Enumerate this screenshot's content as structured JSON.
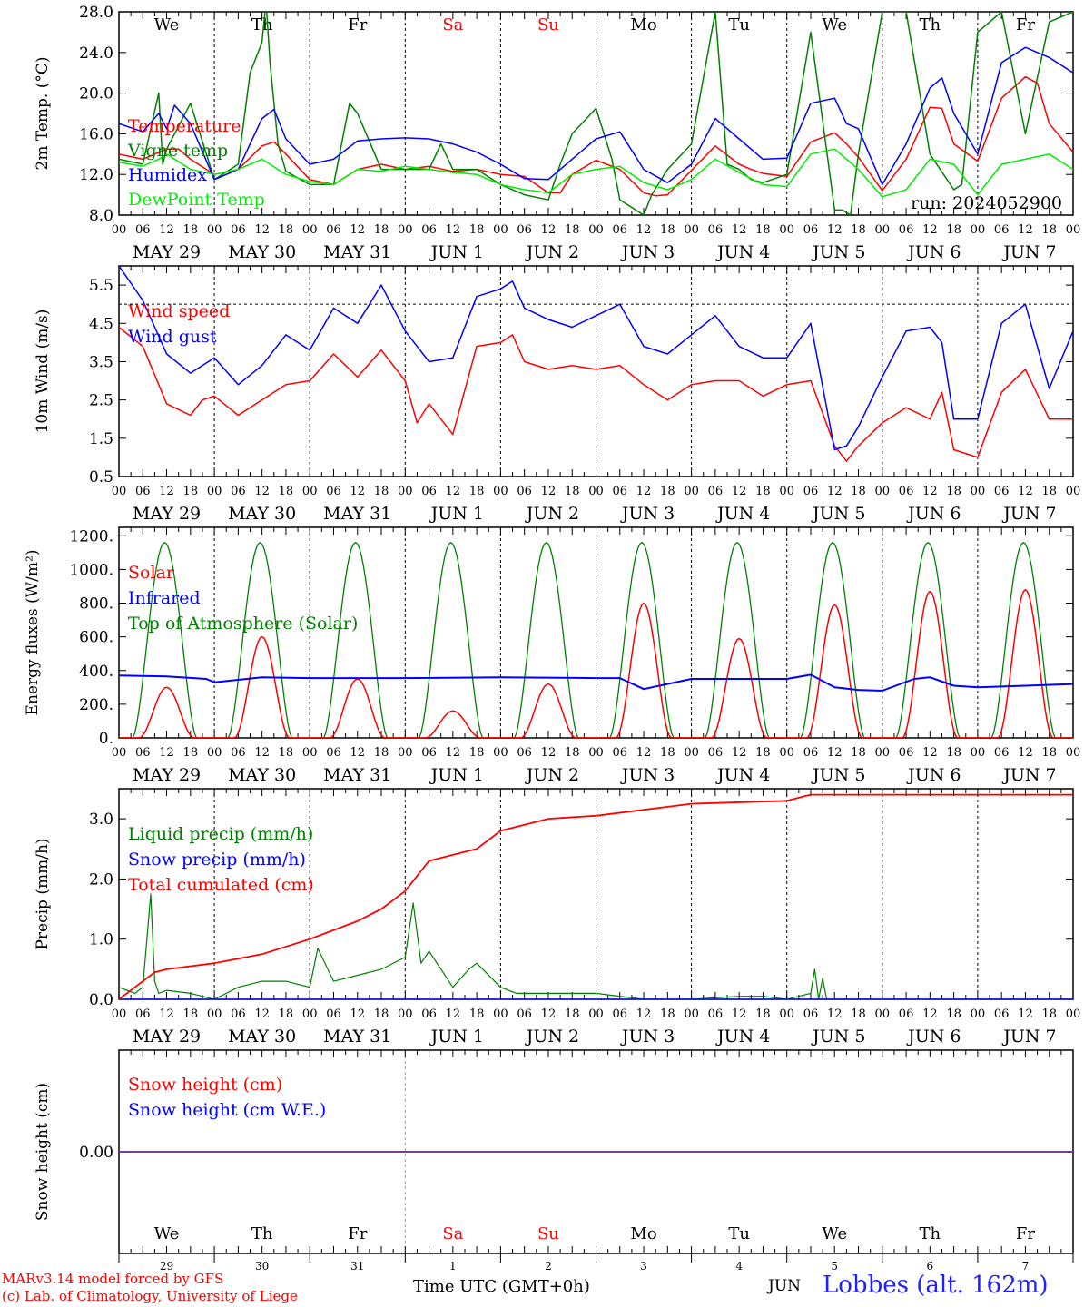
{
  "run_label": "run: 2024052900",
  "x_axis": {
    "hour_ticks": [
      "00",
      "06",
      "12",
      "18"
    ],
    "date_labels": [
      "MAY 29",
      "MAY 30",
      "MAY 31",
      "JUN  1",
      "JUN  2",
      "JUN  3",
      "JUN  4",
      "JUN  5",
      "JUN  6",
      "JUN  7"
    ],
    "weekdays": [
      "We",
      "Th",
      "Fr",
      "Sa",
      "Su",
      "Mo",
      "Tu",
      "We",
      "Th",
      "Fr"
    ],
    "weekday_colors": [
      "#000000",
      "#000000",
      "#000000",
      "#ff0000",
      "#ff0000",
      "#000000",
      "#000000",
      "#000000",
      "#000000",
      "#000000"
    ],
    "day_numbers": [
      "29",
      "30",
      "31",
      "1",
      "2",
      "3",
      "4",
      "5",
      "6",
      "7"
    ]
  },
  "footer": {
    "credit_line1": "MARv3.14 model forced by GFS",
    "credit_line2": "(c) Lab. of Climatology, University of Liege",
    "time_label": "Time UTC (GMT+0h)",
    "month_label": "JUN",
    "station": "Lobbes (alt. 162m)"
  },
  "colors": {
    "red": "#ff0000",
    "green": "#008000",
    "blue": "#0000ff",
    "lightgreen": "#00ee00",
    "purple": "#7a3c96"
  },
  "chart_data": [
    {
      "type": "line",
      "ylabel": "2m Temp. (°C)",
      "ylim": [
        8,
        28
      ],
      "yticks": [
        8,
        12,
        16,
        20,
        24,
        28
      ],
      "ytick_labels": [
        "8.0",
        "12.0",
        "16.0",
        "20.0",
        "24.0",
        "28.0"
      ],
      "x_unit": "hours since MAY 29 00 UTC",
      "xlim": [
        0,
        240
      ],
      "series": [
        {
          "name": "Temperature",
          "color": "#ff0000",
          "x": [
            0,
            6,
            12,
            15,
            18,
            24,
            30,
            36,
            39,
            42,
            48,
            54,
            60,
            66,
            72,
            78,
            84,
            90,
            96,
            102,
            108,
            111,
            114,
            120,
            126,
            132,
            135,
            138,
            144,
            150,
            156,
            159,
            162,
            168,
            174,
            180,
            183,
            186,
            192,
            198,
            204,
            207,
            210,
            216,
            222,
            228,
            231,
            234,
            240
          ],
          "values": [
            14,
            13.5,
            14.5,
            14.5,
            13.5,
            12,
            12.5,
            14.8,
            15.2,
            14,
            11.5,
            11,
            12.5,
            13,
            12.5,
            12.8,
            12.3,
            12.5,
            12,
            11.8,
            10.2,
            10.2,
            12,
            13.4,
            12.5,
            10.2,
            9.9,
            10,
            12.4,
            14.8,
            13,
            12.5,
            12.1,
            11.8,
            15.2,
            16.1,
            15,
            13.7,
            10.4,
            13.5,
            18.6,
            18.5,
            15,
            13.3,
            19.5,
            21.6,
            21,
            17,
            14.2
          ]
        },
        {
          "name": "Vigne temp",
          "color": "#008000",
          "x": [
            0,
            6,
            10,
            11,
            12,
            18,
            24,
            30,
            33,
            36,
            37,
            38,
            40,
            42,
            48,
            54,
            58,
            60,
            66,
            72,
            78,
            81,
            84,
            90,
            96,
            102,
            108,
            111,
            114,
            120,
            124,
            126,
            132,
            134,
            138,
            144,
            150,
            153,
            156,
            159,
            162,
            168,
            174,
            180,
            182,
            184,
            186,
            192,
            198,
            204,
            210,
            212,
            216,
            222,
            228,
            234,
            240
          ],
          "values": [
            13.5,
            13,
            20,
            13,
            14.5,
            19,
            11.5,
            13,
            22,
            25,
            29,
            23,
            15,
            12.3,
            11,
            11,
            19,
            18,
            12.5,
            12.5,
            12.5,
            15,
            12.5,
            12.5,
            11,
            10,
            9.5,
            13,
            16,
            18.5,
            13.5,
            9.5,
            8,
            10,
            12.5,
            15,
            28,
            13,
            12.5,
            11.5,
            11.2,
            12,
            26,
            8.5,
            8.5,
            8,
            14,
            28,
            28,
            14,
            10.5,
            11,
            26,
            28,
            16,
            27,
            28
          ]
        },
        {
          "name": "Humidex",
          "color": "#0000ff",
          "x": [
            0,
            6,
            10,
            12,
            14,
            18,
            24,
            30,
            36,
            39,
            42,
            48,
            54,
            60,
            66,
            72,
            78,
            84,
            90,
            96,
            102,
            108,
            114,
            120,
            126,
            132,
            138,
            144,
            150,
            156,
            162,
            168,
            174,
            180,
            183,
            186,
            192,
            198,
            204,
            207,
            210,
            216,
            222,
            228,
            234,
            240
          ],
          "values": [
            17,
            16.2,
            18,
            16.5,
            18.8,
            17,
            11.5,
            12.5,
            17.5,
            18.4,
            15.5,
            13,
            13.5,
            15.3,
            15.5,
            15.6,
            15.5,
            15,
            14.2,
            13,
            11.6,
            11.5,
            13.5,
            15.5,
            16.2,
            12.5,
            11.2,
            13,
            17.5,
            15.5,
            13.5,
            13.6,
            19,
            19.5,
            17,
            16.5,
            11,
            15,
            20.5,
            21.5,
            18,
            14,
            23,
            24.5,
            23.5,
            22
          ]
        },
        {
          "name": "DewPoint Temp",
          "color": "#00ee00",
          "x": [
            0,
            6,
            10,
            12,
            18,
            24,
            30,
            36,
            42,
            48,
            54,
            60,
            66,
            72,
            78,
            84,
            90,
            96,
            102,
            108,
            114,
            120,
            126,
            132,
            138,
            144,
            150,
            156,
            162,
            168,
            174,
            180,
            186,
            192,
            198,
            204,
            210,
            216,
            222,
            228,
            234,
            240
          ],
          "values": [
            13.2,
            12.8,
            13.5,
            14,
            12.5,
            12,
            12.5,
            13.5,
            12,
            11.3,
            11,
            12.5,
            12.3,
            12.8,
            12.5,
            12.2,
            12,
            11,
            10.5,
            10.2,
            12,
            12.5,
            12.8,
            11.2,
            10.5,
            11.5,
            13.5,
            12.2,
            11,
            10.8,
            14,
            14.5,
            12.5,
            9.8,
            10.5,
            13.5,
            13,
            10,
            13,
            13.5,
            14,
            12.5
          ]
        }
      ],
      "legend": [
        "Temperature",
        "Vigne temp",
        "Humidex",
        "DewPoint Temp"
      ]
    },
    {
      "type": "line",
      "ylabel": "10m Wind (m/s)",
      "ylim": [
        0.5,
        6.0
      ],
      "yticks": [
        0.5,
        1.5,
        2.5,
        3.5,
        4.5,
        5.5
      ],
      "ytick_labels": [
        "0.5",
        "1.5",
        "2.5",
        "3.5",
        "4.5",
        "5.5"
      ],
      "reference_line": 5.0,
      "x_unit": "hours since MAY 29 00 UTC",
      "xlim": [
        0,
        240
      ],
      "series": [
        {
          "name": "Wind speed",
          "color": "#ff0000",
          "x": [
            0,
            6,
            12,
            18,
            21,
            24,
            30,
            36,
            42,
            48,
            54,
            60,
            66,
            72,
            75,
            78,
            84,
            90,
            96,
            99,
            102,
            108,
            114,
            120,
            126,
            132,
            138,
            144,
            150,
            156,
            162,
            168,
            174,
            180,
            183,
            186,
            192,
            198,
            204,
            207,
            210,
            216,
            222,
            228,
            234,
            240
          ],
          "values": [
            4.4,
            3.9,
            2.4,
            2.1,
            2.5,
            2.6,
            2.1,
            2.5,
            2.9,
            3.0,
            3.7,
            3.1,
            3.8,
            3.0,
            1.9,
            2.4,
            1.6,
            3.9,
            4.0,
            4.2,
            3.5,
            3.3,
            3.4,
            3.3,
            3.4,
            2.9,
            2.5,
            2.9,
            3.0,
            3.0,
            2.6,
            2.9,
            3.0,
            1.3,
            0.9,
            1.3,
            1.9,
            2.3,
            2.0,
            2.7,
            1.2,
            1.0,
            2.7,
            3.3,
            2.0,
            2.0
          ]
        },
        {
          "name": "Wind gust",
          "color": "#0000ff",
          "x": [
            0,
            6,
            12,
            18,
            24,
            30,
            36,
            42,
            48,
            54,
            60,
            66,
            72,
            75,
            78,
            84,
            90,
            96,
            99,
            102,
            108,
            114,
            120,
            126,
            132,
            138,
            144,
            150,
            156,
            162,
            168,
            174,
            180,
            183,
            186,
            192,
            198,
            204,
            207,
            210,
            216,
            222,
            228,
            234,
            240
          ],
          "values": [
            6.0,
            5.1,
            3.7,
            3.2,
            3.6,
            2.9,
            3.4,
            4.2,
            3.8,
            4.9,
            4.5,
            5.5,
            4.3,
            3.9,
            3.5,
            3.6,
            5.2,
            5.4,
            5.6,
            4.9,
            4.6,
            4.4,
            4.7,
            5.0,
            3.9,
            3.7,
            4.2,
            4.7,
            3.9,
            3.6,
            3.6,
            4.5,
            1.2,
            1.3,
            1.8,
            3.1,
            4.3,
            4.4,
            4.0,
            2.0,
            2.0,
            4.5,
            5.0,
            2.8,
            4.3
          ]
        }
      ],
      "legend": [
        "Wind speed",
        "Wind gust"
      ]
    },
    {
      "type": "line",
      "ylabel": "Energy fluxes (W/m²)",
      "ylim": [
        0,
        1250
      ],
      "yticks": [
        0,
        200,
        400,
        600,
        800,
        1000,
        1200
      ],
      "ytick_labels": [
        "0.",
        "200.",
        "400.",
        "600.",
        "800.",
        "1000.",
        "1200."
      ],
      "x_unit": "hours since MAY 29 00 UTC",
      "xlim": [
        0,
        240
      ],
      "toa_peak": 1160,
      "series": [
        {
          "name": "Solar",
          "color": "#ff0000",
          "daily_peaks": [
            300,
            600,
            350,
            160,
            320,
            800,
            590,
            790,
            870,
            880
          ]
        },
        {
          "name": "Infrared",
          "color": "#0000ff",
          "x": [
            0,
            12,
            22,
            24,
            36,
            48,
            72,
            96,
            120,
            126,
            132,
            144,
            168,
            174,
            180,
            186,
            192,
            200,
            204,
            210,
            216,
            228,
            240
          ],
          "values": [
            370,
            365,
            350,
            330,
            360,
            355,
            355,
            360,
            355,
            355,
            290,
            350,
            350,
            375,
            300,
            285,
            280,
            350,
            360,
            310,
            300,
            310,
            320
          ]
        },
        {
          "name": "Top of Atmosphere (Solar)",
          "color": "#008000",
          "daily_peaks": [
            1160,
            1160,
            1160,
            1160,
            1160,
            1160,
            1160,
            1160,
            1160,
            1160
          ]
        }
      ],
      "legend": [
        "Solar",
        "Infrared",
        "Top of Atmosphere (Solar)"
      ]
    },
    {
      "type": "line",
      "ylabel": "Precip (mm/h)",
      "ylim": [
        0,
        3.5
      ],
      "yticks": [
        0,
        1,
        2,
        3
      ],
      "ytick_labels": [
        "0.0",
        "1.0",
        "2.0",
        "3.0"
      ],
      "x_unit": "hours since MAY 29 00 UTC",
      "xlim": [
        0,
        240
      ],
      "series": [
        {
          "name": "Liquid precip (mm/h)",
          "color": "#008000",
          "x": [
            0,
            4,
            6,
            8,
            9,
            10,
            12,
            18,
            24,
            30,
            36,
            42,
            48,
            50,
            54,
            60,
            66,
            72,
            74,
            76,
            78,
            84,
            88,
            90,
            96,
            100,
            108,
            120,
            132,
            144,
            156,
            162,
            168,
            174,
            175,
            176,
            177,
            178,
            179,
            180,
            240
          ],
          "values": [
            0.2,
            0.1,
            0.2,
            1.75,
            0.3,
            0.1,
            0.15,
            0.1,
            0.0,
            0.2,
            0.3,
            0.3,
            0.2,
            0.85,
            0.3,
            0.4,
            0.5,
            0.7,
            1.6,
            0.6,
            0.8,
            0.2,
            0.5,
            0.6,
            0.2,
            0.1,
            0.1,
            0.1,
            0.0,
            0.0,
            0.05,
            0.05,
            0.0,
            0.1,
            0.5,
            0.0,
            0.35,
            0.0,
            0.0,
            0.0,
            0.0
          ]
        },
        {
          "name": "Snow precip (mm/h)",
          "color": "#0000ff",
          "x": [
            0,
            240
          ],
          "values": [
            0,
            0
          ]
        },
        {
          "name": "Total cumulated (cm)",
          "color": "#ff0000",
          "x": [
            0,
            9,
            12,
            24,
            36,
            48,
            60,
            66,
            72,
            78,
            84,
            90,
            96,
            102,
            108,
            120,
            132,
            144,
            168,
            174,
            240
          ],
          "values": [
            0.0,
            0.45,
            0.5,
            0.6,
            0.75,
            1.0,
            1.3,
            1.5,
            1.8,
            2.3,
            2.4,
            2.5,
            2.8,
            2.9,
            3.0,
            3.05,
            3.15,
            3.25,
            3.3,
            3.4,
            3.4
          ]
        }
      ],
      "legend": [
        "Liquid precip (mm/h)",
        "Snow precip (mm/h)",
        "Total cumulated (cm)"
      ]
    },
    {
      "type": "line",
      "ylabel": "Snow height (cm)",
      "yticks": [
        0
      ],
      "ytick_labels": [
        "0.00"
      ],
      "x_unit": "hours since MAY 29 00 UTC",
      "xlim": [
        0,
        240
      ],
      "series": [
        {
          "name": "Snow height (cm)",
          "color": "#ff0000",
          "x": [
            0,
            240
          ],
          "values": [
            0,
            0
          ]
        },
        {
          "name": "Snow height (cm W.E.)",
          "color": "#0000ff",
          "x": [
            0,
            240
          ],
          "values": [
            0,
            0
          ]
        }
      ],
      "legend": [
        "Snow height (cm)",
        "Snow height (cm W.E.)"
      ]
    }
  ]
}
